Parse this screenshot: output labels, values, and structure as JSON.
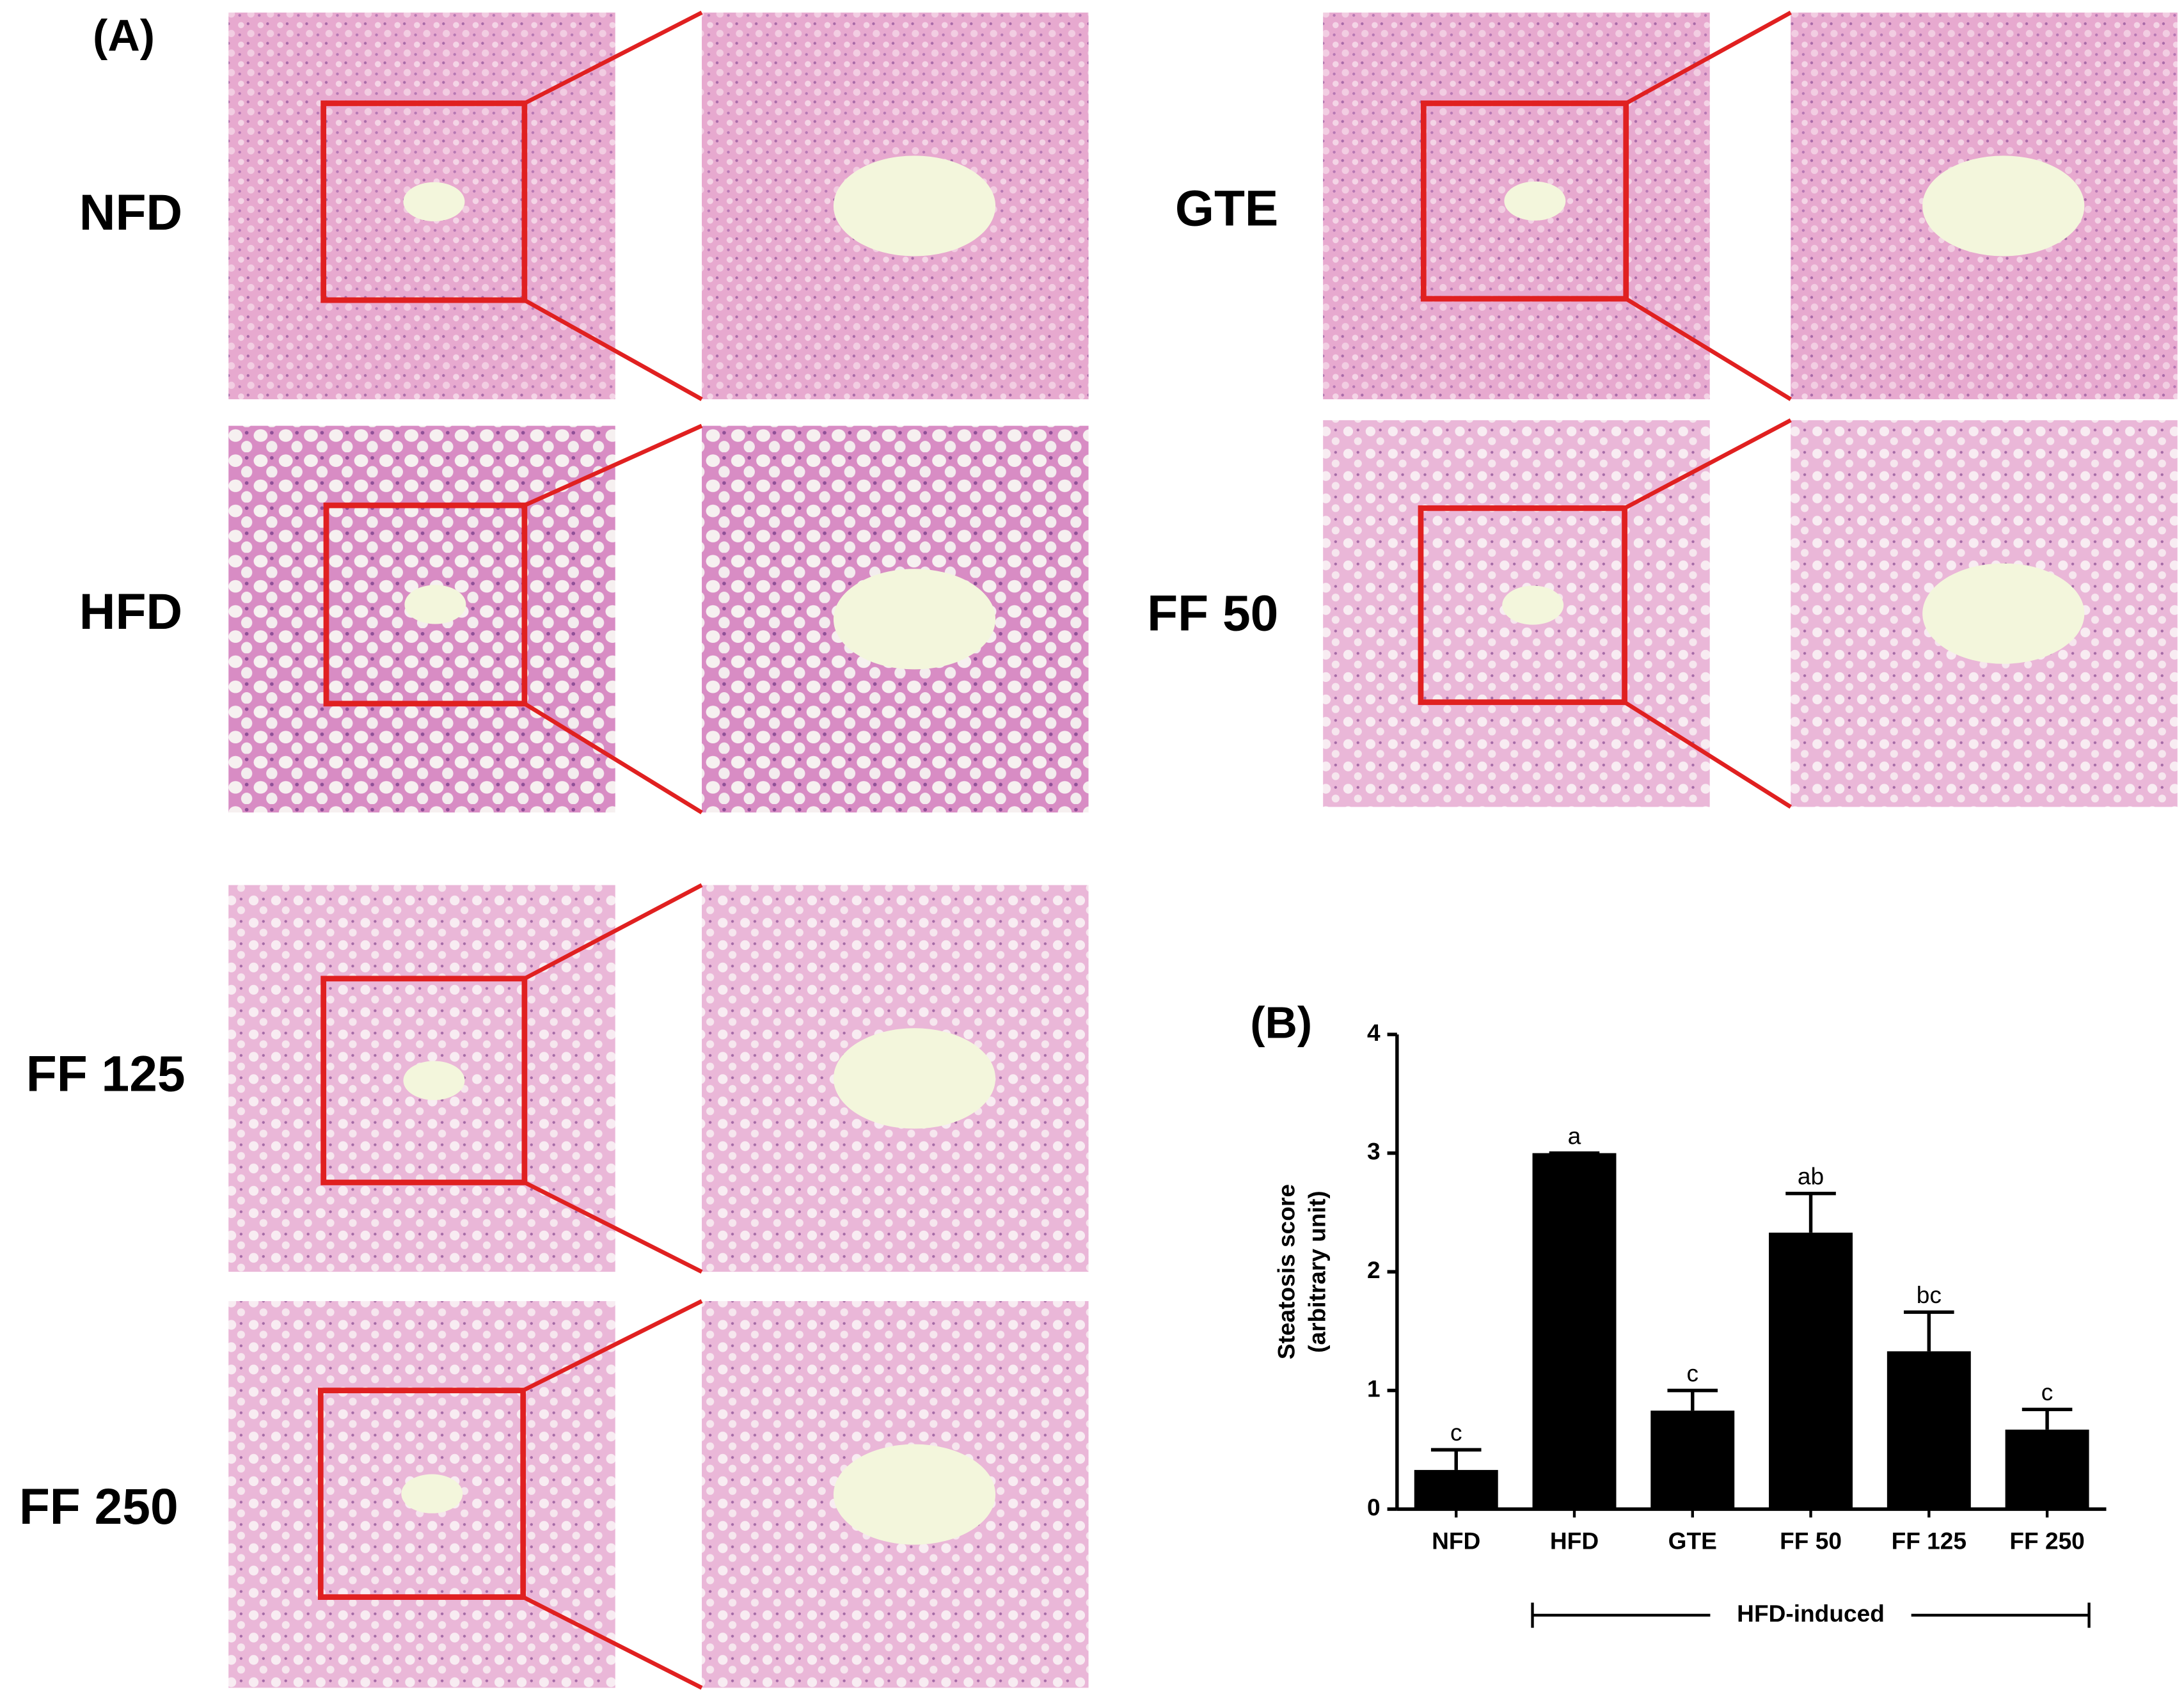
{
  "panel_a": {
    "label": "(A)",
    "groups": [
      "NFD",
      "HFD",
      "FF 125",
      "FF 250",
      "GTE",
      "FF 50"
    ]
  },
  "chart_data": {
    "type": "bar",
    "label": "(B)",
    "y_label": [
      "Steatosis score",
      "(arbitrary unit)"
    ],
    "categories": [
      "NFD",
      "HFD",
      "GTE",
      "FF 50",
      "FF 125",
      "FF 250"
    ],
    "values": [
      0.33,
      3.0,
      0.83,
      2.33,
      1.33,
      0.67
    ],
    "errors": [
      0.17,
      0,
      0.17,
      0.33,
      0.33,
      0.17
    ],
    "letters": [
      "c",
      "a",
      "c",
      "ab",
      "bc",
      "c"
    ],
    "color": "#000000",
    "ylim": [
      0,
      4
    ],
    "yticks": [
      0,
      1,
      2,
      3,
      4
    ],
    "bracket": {
      "label": "HFD-induced",
      "from": "HFD",
      "to": "FF 250"
    }
  }
}
